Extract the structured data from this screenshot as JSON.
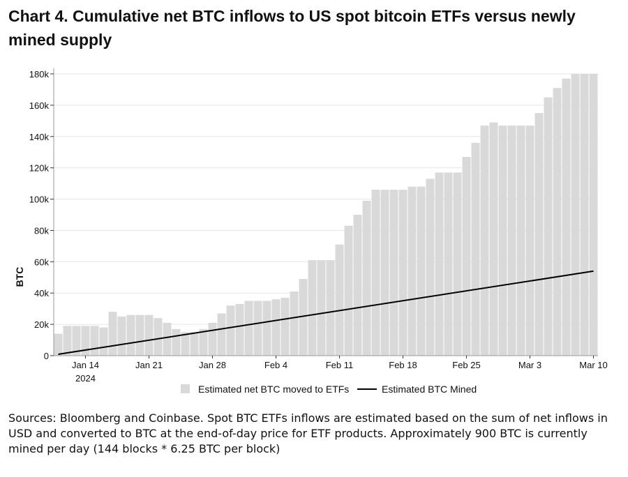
{
  "title": "Chart 4. Cumulative net BTC inflows to US spot bitcoin ETFs versus newly mined supply",
  "source_note": "Sources: Bloomberg and Coinbase. Spot BTC ETFs inflows are estimated based on the sum of net inflows in USD and converted to BTC at the end-of-day price for ETF products. Approximately 900 BTC is currently mined per day (144 blocks * 6.25 BTC per block)",
  "colors": {
    "bar": "#d9d9d9",
    "line": "#000000",
    "grid": "#e6e6e6",
    "axis": "#999999"
  },
  "chart_data": {
    "type": "bar",
    "ylabel": "BTC",
    "ylim": [
      0,
      180000
    ],
    "y_ticks": [
      0,
      20000,
      40000,
      60000,
      80000,
      100000,
      120000,
      140000,
      160000,
      180000
    ],
    "y_tick_labels": [
      "0",
      "20k",
      "40k",
      "60k",
      "80k",
      "100k",
      "120k",
      "140k",
      "160k",
      "180k"
    ],
    "x_ticks": [
      {
        "index": 3,
        "label": "Jan 14",
        "sublabel": "2024"
      },
      {
        "index": 10,
        "label": "Jan 21"
      },
      {
        "index": 17,
        "label": "Jan 28"
      },
      {
        "index": 24,
        "label": "Feb 4"
      },
      {
        "index": 31,
        "label": "Feb 11"
      },
      {
        "index": 38,
        "label": "Feb 18"
      },
      {
        "index": 45,
        "label": "Feb 25"
      },
      {
        "index": 52,
        "label": "Mar 3"
      },
      {
        "index": 59,
        "label": "Mar 10"
      }
    ],
    "start_date": "Jan 11",
    "series": [
      {
        "name": "Estimated net BTC moved to ETFs",
        "type": "bar",
        "values": [
          14000,
          19000,
          19000,
          19000,
          19000,
          18000,
          28000,
          25000,
          26000,
          26000,
          26000,
          24000,
          21000,
          17000,
          15000,
          15000,
          17000,
          21000,
          27000,
          32000,
          33000,
          35000,
          35000,
          35000,
          36000,
          37000,
          41000,
          49000,
          61000,
          61000,
          61000,
          71000,
          83000,
          90000,
          99000,
          106000,
          106000,
          106000,
          106000,
          108000,
          108000,
          113000,
          117000,
          117000,
          117000,
          127000,
          136000,
          147000,
          149000,
          147000,
          147000,
          147000,
          147000,
          155000,
          165000,
          171000,
          177000,
          180000,
          180000,
          180000
        ]
      },
      {
        "name": "Estimated BTC Mined",
        "type": "line",
        "start_value": 900,
        "end_value": 54000
      }
    ]
  }
}
